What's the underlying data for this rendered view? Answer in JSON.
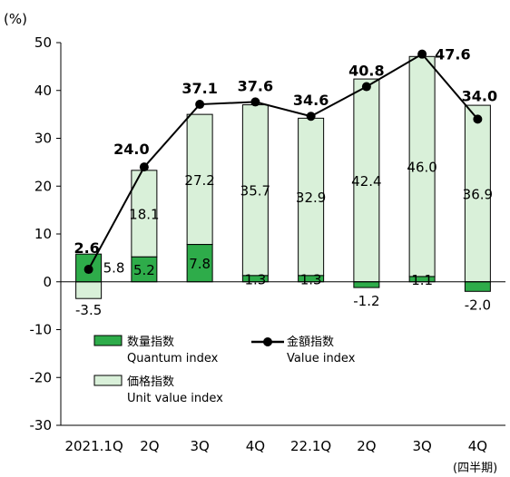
{
  "chart_data": {
    "type": "bar",
    "unit_label": "(%)",
    "period_label": "(四半期)",
    "categories": [
      "2021.1Q",
      "2Q",
      "3Q",
      "4Q",
      "22.1Q",
      "2Q",
      "3Q",
      "4Q"
    ],
    "ylim": [
      -30,
      50
    ],
    "yticks": [
      50,
      40,
      30,
      20,
      10,
      0,
      -10,
      -20,
      -30
    ],
    "grid": false,
    "legend_position": "bottom-left",
    "series": [
      {
        "name": "数量指数 Quantum index",
        "kind": "bar",
        "color": "#2eac4a",
        "values": [
          5.8,
          5.2,
          7.8,
          1.3,
          1.3,
          -1.2,
          1.1,
          -2.0
        ],
        "labels": [
          "5.8",
          "5.2",
          "7.8",
          "1.3",
          "1.3",
          "-1.2",
          "1.1",
          "-2.0"
        ]
      },
      {
        "name": "価格指数 Unit value index",
        "kind": "bar",
        "color": "#d9f0d9",
        "values": [
          -3.5,
          18.1,
          27.2,
          35.7,
          32.9,
          42.4,
          46.0,
          36.9
        ],
        "labels": [
          "-3.5",
          "18.1",
          "27.2",
          "35.7",
          "32.9",
          "42.4",
          "46.0",
          "36.9"
        ]
      },
      {
        "name": "金額指数 Value index",
        "kind": "line",
        "color": "#000000",
        "values": [
          2.6,
          24.0,
          37.1,
          37.6,
          34.6,
          40.8,
          47.6,
          34.0
        ],
        "labels": [
          "2.6",
          "24.0",
          "37.1",
          "37.6",
          "34.6",
          "40.8",
          "47.6",
          "34.0"
        ]
      }
    ],
    "legend": {
      "quantum_jp": "数量指数",
      "quantum_en": "Quantum index",
      "unit_jp": "価格指数",
      "unit_en": "Unit value index",
      "value_jp": "金額指数",
      "value_en": "Value index"
    }
  }
}
